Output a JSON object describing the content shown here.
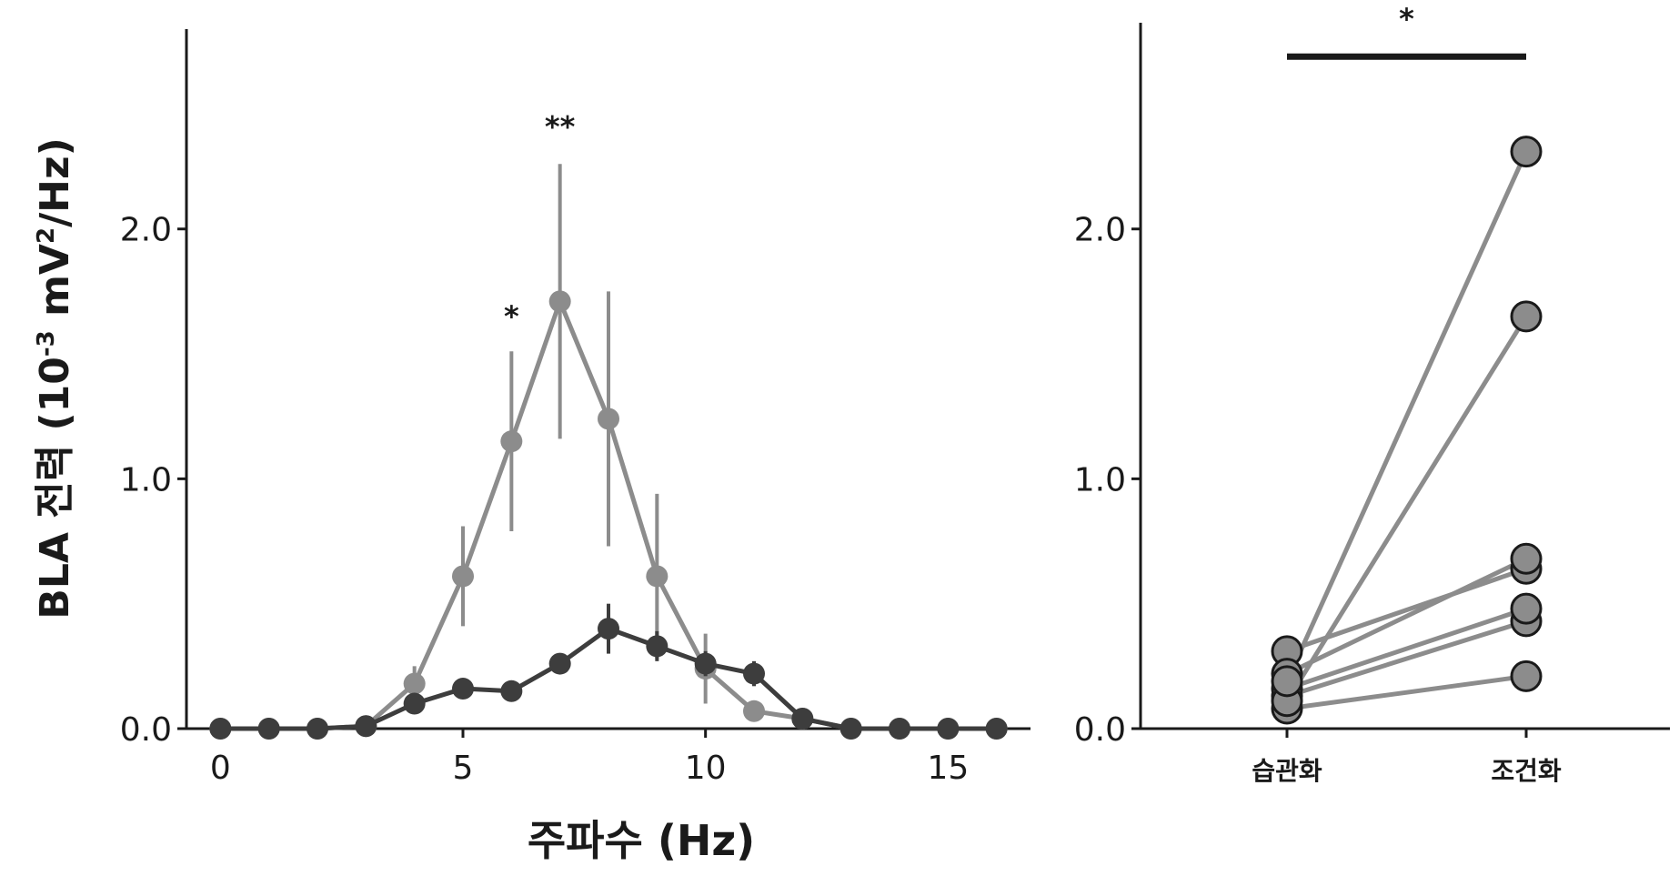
{
  "chart_data": [
    {
      "type": "line",
      "xlabel": "주파수 (Hz)",
      "ylabel": {
        "main": "BLA 전력 (10",
        "exp": "-3",
        "mid": " mV",
        "exp2": "2",
        "tail": "/Hz)"
      },
      "xlim": [
        -0.7,
        16.7
      ],
      "ylim": [
        0,
        2.8
      ],
      "xticks": [
        0,
        5,
        10,
        15
      ],
      "xtick_labels": [
        "0",
        "5",
        "10",
        "15"
      ],
      "yticks": [
        0,
        1,
        2
      ],
      "ytick_labels": [
        "0.0",
        "1.0",
        "2.0"
      ],
      "grid": false,
      "series": [
        {
          "color": "#8c8c8c",
          "x": [
            0,
            1,
            2,
            3,
            4,
            5,
            6,
            7,
            8,
            9,
            10,
            11,
            12,
            13,
            14,
            15,
            16
          ],
          "y": [
            0,
            0,
            0,
            0.01,
            0.18,
            0.61,
            1.15,
            1.71,
            1.24,
            0.61,
            0.24,
            0.07,
            0.04,
            0,
            0,
            0,
            0
          ],
          "err": [
            0,
            0,
            0,
            0,
            0.07,
            0.2,
            0.36,
            0.55,
            0.51,
            0.33,
            0.14,
            0,
            0,
            0,
            0,
            0,
            0
          ]
        },
        {
          "color": "#3d3d3d",
          "x": [
            0,
            1,
            2,
            3,
            4,
            5,
            6,
            7,
            8,
            9,
            10,
            11,
            12,
            13,
            14,
            15,
            16
          ],
          "y": [
            0,
            0,
            0,
            0.01,
            0.1,
            0.16,
            0.15,
            0.26,
            0.4,
            0.33,
            0.26,
            0.22,
            0.04,
            0,
            0,
            0,
            0
          ],
          "err": [
            0,
            0,
            0,
            0,
            0.03,
            0.03,
            0.03,
            0.04,
            0.1,
            0.06,
            0.05,
            0.05,
            0,
            0,
            0,
            0,
            0
          ]
        }
      ],
      "annotations": [
        {
          "text": "*",
          "x": 6,
          "y": 1.66
        },
        {
          "text": "**",
          "x": 7,
          "y": 2.42
        }
      ]
    },
    {
      "type": "scatter",
      "categories": [
        "습관화",
        "조건화"
      ],
      "ylim": [
        0,
        2.8
      ],
      "yticks": [
        0,
        1,
        2
      ],
      "ytick_labels": [
        "0.0",
        "1.0",
        "2.0"
      ],
      "grid": false,
      "paired": [
        [
          0.08,
          0.21
        ],
        [
          0.13,
          0.43
        ],
        [
          0.16,
          0.48
        ],
        [
          0.31,
          0.64
        ],
        [
          0.22,
          0.68
        ],
        [
          0.11,
          1.65
        ],
        [
          0.19,
          2.31
        ]
      ],
      "point_color": "#8c8c8c",
      "line_color": "#8c8c8c",
      "significance": {
        "text": "*",
        "between": [
          "습관화",
          "조건화"
        ],
        "y": 2.69
      }
    }
  ]
}
